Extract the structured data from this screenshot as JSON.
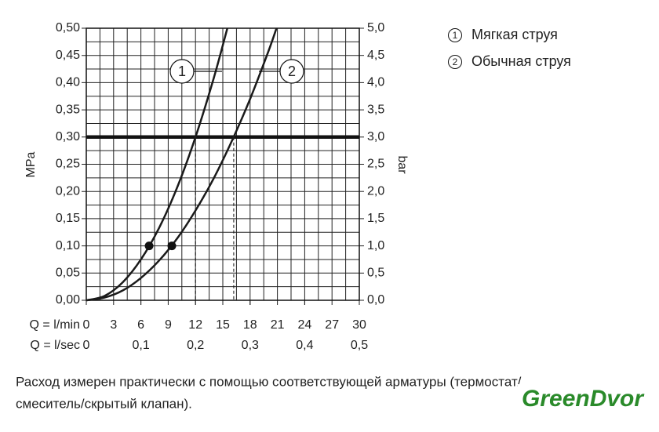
{
  "chart_data": {
    "type": "line",
    "y_label": "MPa",
    "y2_label": "bar",
    "x_row_label": "Q = l/min",
    "x2_row_label": "Q = l/sec",
    "xlim": [
      0,
      30
    ],
    "xticks": [
      0,
      3,
      6,
      9,
      12,
      15,
      18,
      21,
      24,
      27,
      30
    ],
    "x2lim": [
      0,
      0.5
    ],
    "x2ticks": [
      {
        "value": 0,
        "label": "0"
      },
      {
        "value": 0.1,
        "label": "0,1"
      },
      {
        "value": 0.2,
        "label": "0,2"
      },
      {
        "value": 0.3,
        "label": "0,3"
      },
      {
        "value": 0.4,
        "label": "0,4"
      },
      {
        "value": 0.5,
        "label": "0,5"
      }
    ],
    "ylim": [
      0,
      0.5
    ],
    "yticks": [
      {
        "value": 0,
        "label": "0,00"
      },
      {
        "value": 0.05,
        "label": "0,05"
      },
      {
        "value": 0.1,
        "label": "0,10"
      },
      {
        "value": 0.15,
        "label": "0,15"
      },
      {
        "value": 0.2,
        "label": "0,20"
      },
      {
        "value": 0.25,
        "label": "0,25"
      },
      {
        "value": 0.3,
        "label": "0,30"
      },
      {
        "value": 0.35,
        "label": "0,35"
      },
      {
        "value": 0.4,
        "label": "0,40"
      },
      {
        "value": 0.45,
        "label": "0,45"
      },
      {
        "value": 0.5,
        "label": "0,50"
      }
    ],
    "y2lim": [
      0,
      5
    ],
    "y2ticks": [
      {
        "value": 0,
        "label": "0,0"
      },
      {
        "value": 0.5,
        "label": "0,5"
      },
      {
        "value": 1,
        "label": "1,0"
      },
      {
        "value": 1.5,
        "label": "1,5"
      },
      {
        "value": 2,
        "label": "2,0"
      },
      {
        "value": 2.5,
        "label": "2,5"
      },
      {
        "value": 3,
        "label": "3,0"
      },
      {
        "value": 3.5,
        "label": "3,5"
      },
      {
        "value": 4,
        "label": "4,0"
      },
      {
        "value": 4.5,
        "label": "4,5"
      },
      {
        "value": 5,
        "label": "5,0"
      }
    ],
    "grid": true,
    "series": [
      {
        "name": "Мягкая струя",
        "label": "1",
        "color": "#1a1a1a",
        "x": [
          0,
          2,
          4,
          6,
          8,
          10,
          12,
          14,
          15.5
        ],
        "values": [
          0,
          0.008,
          0.033,
          0.075,
          0.133,
          0.208,
          0.3,
          0.408,
          0.5
        ]
      },
      {
        "name": "Обычная струя",
        "label": "2",
        "color": "#1a1a1a",
        "x": [
          0,
          2,
          4,
          6,
          8,
          10,
          12,
          14,
          16,
          18,
          20,
          20.9
        ],
        "values": [
          0,
          0.005,
          0.018,
          0.041,
          0.073,
          0.114,
          0.165,
          0.224,
          0.293,
          0.37,
          0.457,
          0.5
        ]
      }
    ],
    "markers": [
      {
        "x": 6.9,
        "y": 0.1
      },
      {
        "x": 9.4,
        "y": 0.1
      }
    ],
    "reference_y": 0.3,
    "dashed_x": [
      12,
      16.2
    ],
    "note_lines": [
      "Расход измерен практически с помощью соответствующей арматуры (термостат/",
      "смеситель/скрытый клапан)."
    ],
    "watermark": "GreenDvor"
  }
}
